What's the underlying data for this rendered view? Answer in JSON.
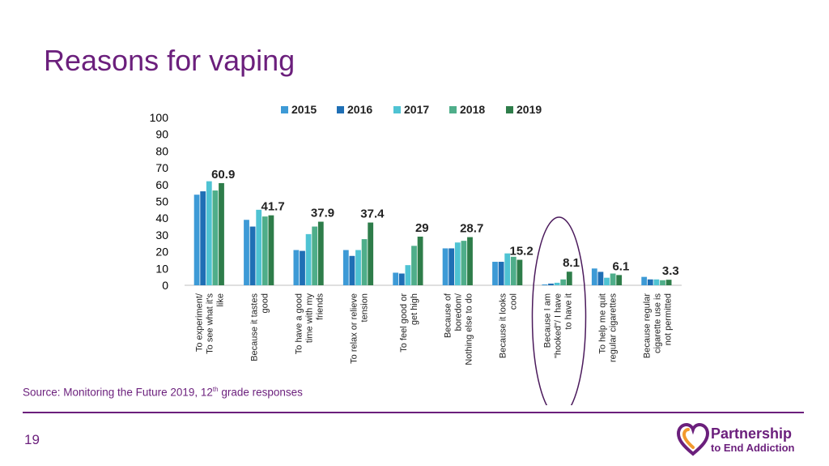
{
  "slide": {
    "title": "Reasons for vaping",
    "source_text": "Source: Monitoring the Future 2019, 12",
    "source_sup": "th",
    "source_suffix": " grade responses",
    "page_number": "19",
    "logo": {
      "line1": "Partnership",
      "line2": "to End Addiction",
      "icon": "heart-icon"
    }
  },
  "colors": {
    "accent": "#6b1f7c",
    "series": [
      "#3d9ad6",
      "#1f6fb5",
      "#4fc3d3",
      "#4fae8a",
      "#2e7d4a"
    ],
    "logo_heart_orange": "#f29a2e"
  },
  "chart_data": {
    "type": "bar",
    "title": "",
    "xlabel": "",
    "ylabel": "",
    "ylim": [
      0,
      100
    ],
    "yticks": [
      0,
      10,
      20,
      30,
      40,
      50,
      60,
      70,
      80,
      90,
      100
    ],
    "grid": false,
    "legend_position": "top",
    "categories": [
      [
        "To experiment/",
        "To see what it's",
        "like"
      ],
      [
        "Because it tastes",
        "good"
      ],
      [
        "To have a good",
        "time with my",
        "friends"
      ],
      [
        "To relax or relieve",
        "tension"
      ],
      [
        "To feel good or",
        "get high"
      ],
      [
        "Because of",
        "boredom/",
        "Nothing else to do"
      ],
      [
        "Because it looks",
        "cool"
      ],
      [
        "Because I am",
        "\"hooked\"/ I have",
        "to have it"
      ],
      [
        "To help me quit",
        "regular cigarettes"
      ],
      [
        "Because regular",
        "cigarette use is",
        "not permitted"
      ]
    ],
    "series": [
      {
        "name": "2015",
        "values": [
          54,
          39,
          21,
          21,
          7.5,
          22,
          14,
          0.5,
          10,
          5
        ]
      },
      {
        "name": "2016",
        "values": [
          56,
          35,
          20.5,
          17.5,
          7,
          22,
          14,
          1,
          8,
          3.5
        ]
      },
      {
        "name": "2017",
        "values": [
          62,
          45,
          30.5,
          21,
          12,
          25.5,
          19,
          1.5,
          4.5,
          3.5
        ]
      },
      {
        "name": "2018",
        "values": [
          56.5,
          41,
          35,
          27.5,
          23.5,
          26.5,
          17,
          3.5,
          7,
          3
        ]
      },
      {
        "name": "2019",
        "values": [
          60.9,
          41.7,
          37.9,
          37.4,
          29,
          28.7,
          15.2,
          8.1,
          6.1,
          3.3
        ]
      }
    ],
    "data_labels": [
      "60.9",
      "41.7",
      "37.9",
      "37.4",
      "29",
      "28.7",
      "15.2",
      "8.1",
      "6.1",
      "3.3"
    ],
    "highlight_category_index": 7
  }
}
